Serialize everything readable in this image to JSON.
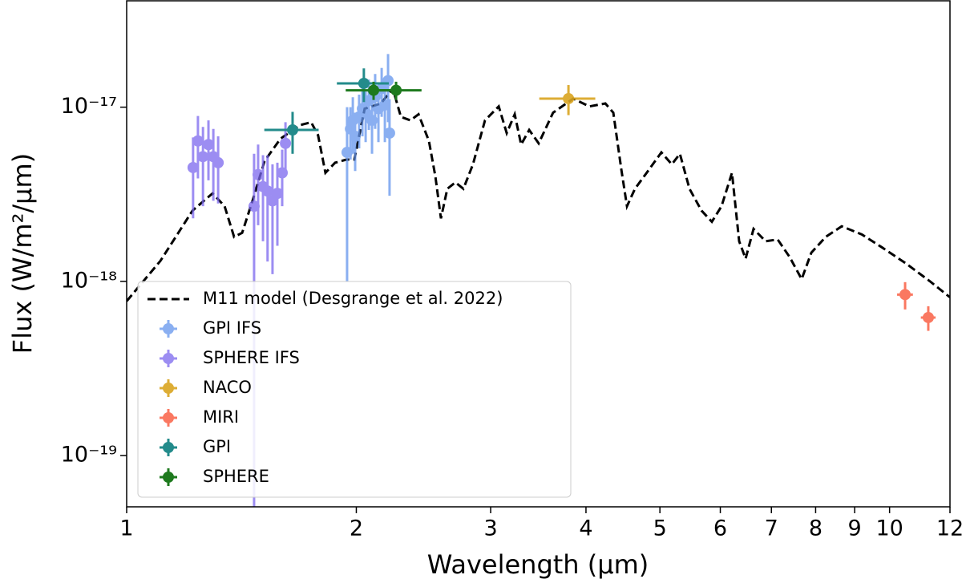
{
  "chart_data": {
    "type": "errorbar",
    "xlabel": "Wavelength (μm)",
    "ylabel": "Flux (W/m²/μm)",
    "xlog": true,
    "ylog": true,
    "xlim": [
      1,
      12
    ],
    "ylim": [
      5.08e-20,
      4.08e-17
    ],
    "xticks": [
      1,
      2,
      3,
      4,
      5,
      6,
      7,
      8,
      9,
      10,
      12
    ],
    "yticks": [
      {
        "value": 1e-19,
        "label": "10⁻¹⁹"
      },
      {
        "value": 1e-18,
        "label": "10⁻¹⁸"
      },
      {
        "value": 1e-17,
        "label": "10⁻¹⁷"
      }
    ],
    "legend": "lower left",
    "series": [
      {
        "name": "M11 model (Desgrange et al. 2022)",
        "type": "line",
        "color": "#000000",
        "dash": true,
        "x": [
          1.0,
          1.107,
          1.22,
          1.296,
          1.344,
          1.383,
          1.417,
          1.462,
          1.516,
          1.591,
          1.69,
          1.745,
          1.782,
          1.822,
          1.876,
          1.941,
          1.988,
          2.051,
          2.154,
          2.233,
          2.288,
          2.355,
          2.413,
          2.49,
          2.539,
          2.582,
          2.632,
          2.697,
          2.763,
          2.844,
          2.949,
          3.074,
          3.149,
          3.226,
          3.289,
          3.37,
          3.468,
          3.622,
          3.849,
          4.04,
          4.241,
          4.344,
          4.45,
          4.527,
          4.637,
          4.785,
          5.022,
          5.183,
          5.311,
          5.467,
          5.668,
          5.849,
          6.022,
          6.215,
          6.351,
          6.476,
          6.633,
          6.879,
          7.134,
          7.396,
          7.67,
          7.896,
          8.247,
          8.655,
          9.196,
          9.768,
          10.5,
          11.3,
          12.0
        ],
        "values": [
          7.7e-19,
          1.31e-18,
          2.55e-18,
          3.2e-18,
          2.7e-18,
          1.8e-18,
          1.9e-18,
          2.9e-18,
          4.9e-18,
          6.6e-18,
          7.9e-18,
          8.2e-18,
          6.9e-18,
          4.2e-18,
          4.8e-18,
          5e-18,
          5e-18,
          9.8e-18,
          1.05e-17,
          1.28e-17,
          8.8e-18,
          8.4e-18,
          9.1e-18,
          6.4e-18,
          4e-18,
          2.3e-18,
          3.4e-18,
          3.7e-18,
          3.4e-18,
          4.7e-18,
          8.4e-18,
          1.01e-17,
          7.1e-18,
          9.1e-18,
          6.1e-18,
          7.4e-18,
          6.2e-18,
          9.3e-18,
          1.12e-17,
          1.01e-17,
          1.05e-17,
          9.3e-18,
          4.4e-18,
          2.7e-18,
          3.4e-18,
          4.1e-18,
          5.5e-18,
          4.7e-18,
          5.4e-18,
          3.4e-18,
          2.55e-18,
          2.2e-18,
          2.7e-18,
          4.2e-18,
          1.7e-18,
          1.35e-18,
          2e-18,
          1.7e-18,
          1.74e-18,
          1.38e-18,
          1.03e-18,
          1.46e-18,
          1.8e-18,
          2.07e-18,
          1.86e-18,
          1.57e-18,
          1.27e-18,
          1e-18,
          8.1e-19
        ]
      },
      {
        "name": "GPI IFS",
        "type": "errorbar",
        "color": "#6495ed",
        "alpha": 0.75,
        "x": [
          1.945,
          1.965,
          1.979,
          1.993,
          2.017,
          2.037,
          2.057,
          2.077,
          2.097,
          2.117,
          2.138,
          2.159,
          2.18,
          2.201,
          2.211
        ],
        "values": [
          5.5e-18,
          7.5e-18,
          8.4e-18,
          6.8e-18,
          8.8e-18,
          9.8e-18,
          9.3e-18,
          1.09e-17,
          8.4e-18,
          1.15e-17,
          9.8e-18,
          1.28e-17,
          1.03e-17,
          1.42e-17,
          7.1e-18
        ],
        "yerr": [
          4.5e-18,
          2.5e-18,
          3e-18,
          2.5e-18,
          3e-18,
          3e-18,
          3e-18,
          3.5e-18,
          3e-18,
          4e-18,
          3.5e-18,
          4e-18,
          4e-18,
          6e-18,
          4e-18
        ]
      },
      {
        "name": "SPHERE IFS",
        "type": "errorbar",
        "color": "#7b68ee",
        "alpha": 0.75,
        "x": [
          1.222,
          1.24,
          1.259,
          1.28,
          1.299,
          1.318,
          1.469,
          1.487,
          1.509,
          1.53,
          1.553,
          1.576,
          1.599,
          1.615
        ],
        "values": [
          4.5e-18,
          6.4e-18,
          5.2e-18,
          6.1e-18,
          5.2e-18,
          4.8e-18,
          2.7e-18,
          4.1e-18,
          3.5e-18,
          3.3e-18,
          2.9e-18,
          3.2e-18,
          4.2e-18,
          6.2e-18
        ],
        "yerr": [
          2.2e-18,
          2.5e-18,
          2.5e-18,
          2.3e-18,
          2.3e-18,
          2e-18,
          2.7e-18,
          2e-18,
          1.8e-18,
          2e-18,
          1.8e-18,
          1.6e-18,
          1.5e-18,
          2e-18
        ]
      },
      {
        "name": "NACO",
        "type": "errorbar",
        "color": "#daa520",
        "alpha": 0.9,
        "x": [
          3.794
        ],
        "values": [
          1.12e-17
        ],
        "yerr": [
          2.2e-18
        ],
        "xerr": [
          0.32
        ]
      },
      {
        "name": "MIRI",
        "type": "errorbar",
        "color": "#fa6a50",
        "alpha": 0.9,
        "x": [
          10.48,
          11.24
        ],
        "values": [
          8.4e-19,
          6.2e-19
        ],
        "yerr": [
          1.5e-19,
          1e-19
        ],
        "xerr": [
          0.25,
          0.25
        ]
      },
      {
        "name": "GPI",
        "type": "errorbar",
        "color": "#238b8b",
        "alpha": 1,
        "x": [
          1.65,
          2.046
        ],
        "values": [
          7.4e-18,
          1.37e-17
        ],
        "yerr": [
          2e-18,
          3e-18
        ],
        "xerr": [
          0.135,
          0.16
        ]
      },
      {
        "name": "SPHERE",
        "type": "errorbar",
        "color": "#1e7a1e",
        "alpha": 1,
        "x": [
          2.107,
          2.255
        ],
        "values": [
          1.25e-17,
          1.25e-17
        ],
        "yerr": [
          1.5e-18,
          1.5e-18
        ],
        "xerr": [
          0.17,
          0.18
        ]
      }
    ]
  }
}
